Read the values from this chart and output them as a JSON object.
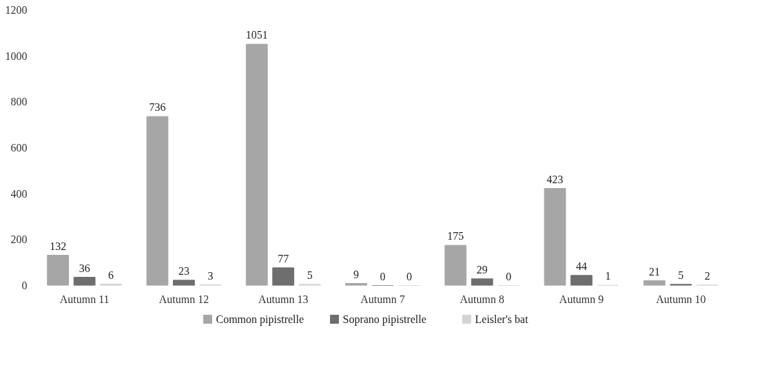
{
  "chart_data": {
    "type": "bar",
    "categories": [
      "Autumn 11",
      "Autumn 12",
      "Autumn 13",
      "Autumn 7",
      "Autumn 8",
      "Autumn 9",
      "Autumn 10"
    ],
    "series": [
      {
        "name": "Common pipistrelle",
        "color": "#a6a6a6",
        "values": [
          132,
          736,
          1051,
          9,
          175,
          423,
          21
        ]
      },
      {
        "name": "Soprano pipistrelle",
        "color": "#6e6e6e",
        "values": [
          36,
          23,
          77,
          0,
          29,
          44,
          5
        ]
      },
      {
        "name": "Leisler's bat",
        "color": "#d4d4d4",
        "values": [
          6,
          3,
          5,
          0,
          0,
          1,
          2
        ]
      }
    ],
    "ylim": [
      0,
      1200
    ],
    "yticks": [
      0,
      200,
      400,
      600,
      800,
      1000,
      1200
    ],
    "grid": false,
    "legend": "bottom",
    "data_labels": true
  }
}
